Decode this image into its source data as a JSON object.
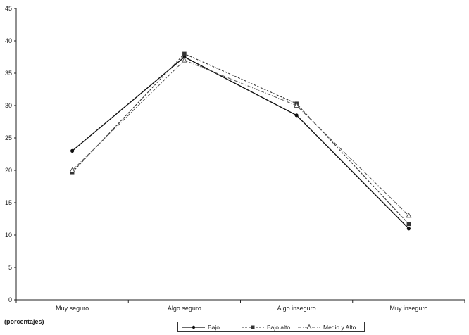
{
  "chart_data": {
    "type": "line",
    "categories": [
      "Muy seguro",
      "Algo seguro",
      "Algo inseguro",
      "Muy inseguro"
    ],
    "series": [
      {
        "name": "Bajo",
        "values": [
          23,
          37.5,
          28.5,
          11
        ],
        "color": "#111111",
        "marker": "circle"
      },
      {
        "name": "Bajo alto",
        "values": [
          19.7,
          38,
          30.3,
          11.7
        ],
        "color": "#333333",
        "marker": "square"
      },
      {
        "name": "Medio y Alto",
        "values": [
          20,
          37,
          30,
          13
        ],
        "color": "#555555",
        "marker": "triangle"
      }
    ],
    "ylim": [
      0,
      45
    ],
    "yticks": [
      0,
      5,
      10,
      15,
      20,
      25,
      30,
      35,
      40,
      45
    ],
    "ylabel": "(porcentajes)",
    "xlabel": "",
    "title": "",
    "grid": false,
    "legend_position": "bottom-center"
  }
}
